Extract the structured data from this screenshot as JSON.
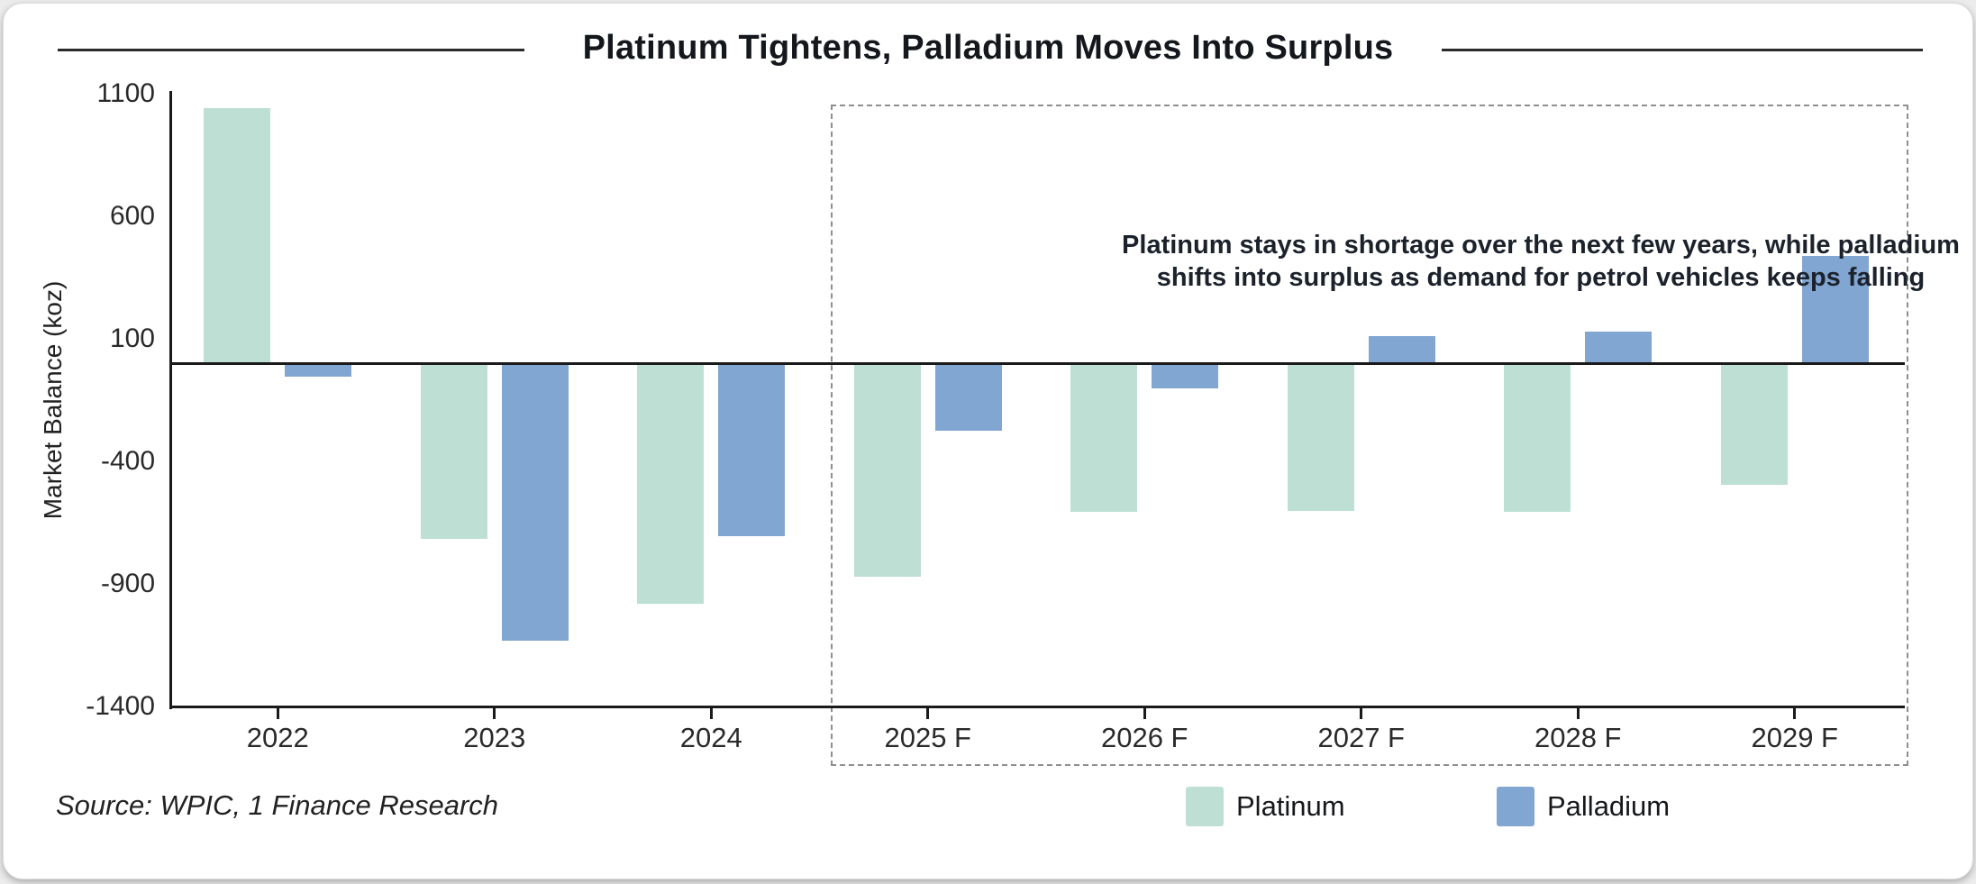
{
  "header": {
    "title": "Platinum Tightens, Palladium Moves Into Surplus"
  },
  "chart_data": {
    "type": "bar",
    "title": "Platinum Tightens, Palladium Moves Into Surplus",
    "xlabel": "",
    "ylabel": "Market Balance (koz)",
    "ylim": [
      -1400,
      1100
    ],
    "yticks": [
      1100,
      600,
      100,
      -400,
      -900,
      -1400
    ],
    "grid": false,
    "legend_position": "bottom",
    "categories": [
      "2022",
      "2023",
      "2024",
      "2025 F",
      "2026 F",
      "2027 F",
      "2028 F",
      "2029 F"
    ],
    "series": [
      {
        "name": "Platinum",
        "color": "#bee0d4",
        "values": [
          1040,
          -710,
          -975,
          -865,
          -600,
          -595,
          -600,
          -490
        ]
      },
      {
        "name": "Palladium",
        "color": "#80a6d1",
        "values": [
          -50,
          -1125,
          -700,
          -270,
          -95,
          110,
          130,
          440
        ]
      }
    ],
    "forecast_start_index": 3,
    "annotation": "Platinum stays in shortage over the next few years, while palladium shifts into surplus as demand for petrol vehicles keeps falling"
  },
  "footer": {
    "source": "Source: WPIC, 1 Finance Research"
  },
  "legend": {
    "items": [
      {
        "label": "Platinum",
        "color": "#bee0d4"
      },
      {
        "label": "Palladium",
        "color": "#80a6d1"
      }
    ]
  }
}
